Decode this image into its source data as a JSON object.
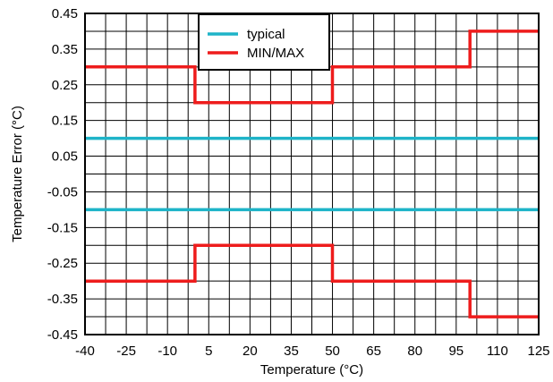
{
  "chart_data": {
    "type": "line",
    "title": "",
    "xlabel": "Temperature (°C)",
    "ylabel": "Temperature Error (°C)",
    "xlim": [
      -40,
      125
    ],
    "ylim": [
      -0.45,
      0.45
    ],
    "grid": true,
    "legend_position": "top-center",
    "x_ticks": [
      "-40",
      "-25",
      "-10",
      "5",
      "20",
      "35",
      "50",
      "65",
      "80",
      "95",
      "110",
      "125"
    ],
    "y_ticks": [
      "0.45",
      "0.35",
      "0.25",
      "0.15",
      "0.05",
      "-0.05",
      "-0.15",
      "-0.25",
      "-0.35",
      "-0.45"
    ],
    "series": [
      {
        "name": "typical",
        "color": "#1eb4c8",
        "lines": [
          {
            "x": [
              -40,
              125
            ],
            "y": [
              0.1,
              0.1
            ]
          },
          {
            "x": [
              -40,
              125
            ],
            "y": [
              -0.1,
              -0.1
            ]
          }
        ]
      },
      {
        "name": "MIN/MAX",
        "color": "#ee1c1c",
        "lines": [
          {
            "x": [
              -40,
              0,
              0,
              50,
              50,
              100,
              100,
              125
            ],
            "y": [
              0.3,
              0.3,
              0.2,
              0.2,
              0.3,
              0.3,
              0.4,
              0.4
            ]
          },
          {
            "x": [
              -40,
              0,
              0,
              50,
              50,
              100,
              100,
              125
            ],
            "y": [
              -0.3,
              -0.3,
              -0.2,
              -0.2,
              -0.3,
              -0.3,
              -0.4,
              -0.4
            ]
          }
        ]
      }
    ]
  }
}
